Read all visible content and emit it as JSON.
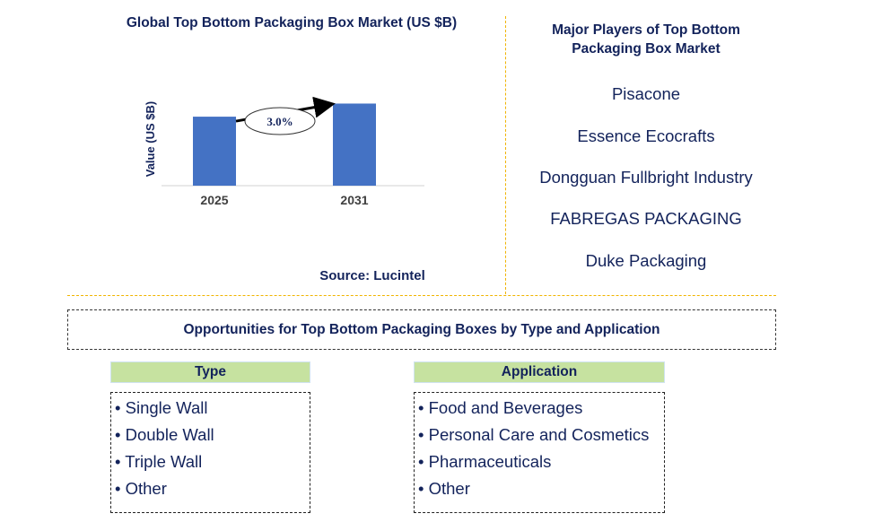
{
  "chart_data": {
    "type": "bar",
    "title": "Global Top Bottom Packaging Box Market (US $B)",
    "ylabel": "Value (US $B)",
    "xlabel": "",
    "categories": [
      "2025",
      "2031"
    ],
    "values": [
      1.0,
      1.19
    ],
    "annotation": "3.0%",
    "bar_color": "#4472c4",
    "grid": false,
    "ylim": [
      0,
      1.3
    ]
  },
  "source": "Source: Lucintel",
  "players": {
    "title": "Major Players of Top Bottom Packaging Box Market",
    "items": [
      "Pisacone",
      "Essence Ecocrafts",
      "Dongguan Fullbright Industry",
      "FABREGAS PACKAGING",
      "Duke Packaging"
    ]
  },
  "opportunities": {
    "title": "Opportunities for Top Bottom Packaging Boxes by Type and Application",
    "type": {
      "header": "Type",
      "items": [
        "• Single Wall",
        "• Double Wall",
        "• Triple Wall",
        "• Other"
      ]
    },
    "application": {
      "header": "Application",
      "items": [
        "• Food and Beverages",
        "• Personal Care and Cosmetics",
        "• Pharmaceuticals",
        "• Other"
      ]
    }
  },
  "colors": {
    "text": "#13235b",
    "bar": "#4472c4",
    "divider": "#f0b400",
    "header_bg": "#c6e2a0"
  }
}
